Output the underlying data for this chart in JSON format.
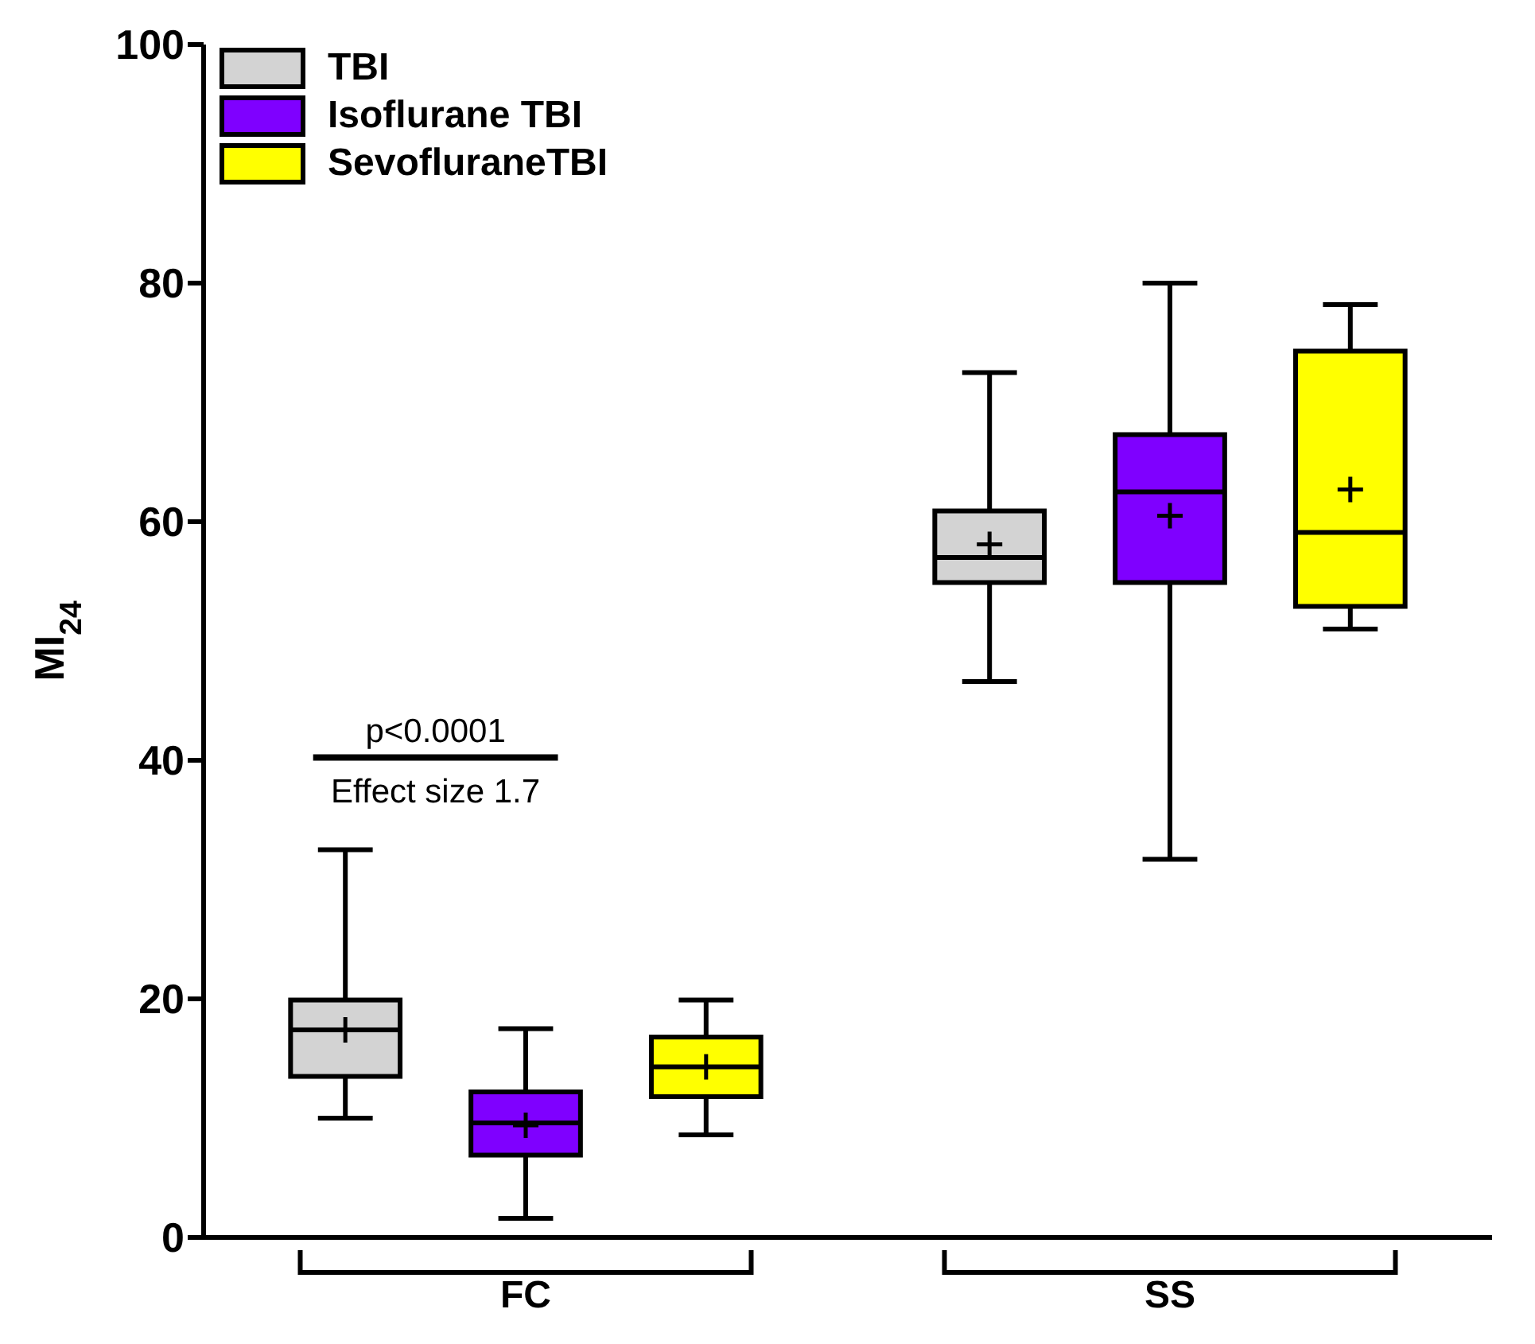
{
  "chart_data": {
    "type": "box",
    "ylabel": "MI$_{24}$",
    "categories": [
      "FC",
      "SS"
    ],
    "series": [
      {
        "name": "TBI",
        "color": "#d3d3d3",
        "boxes": [
          {
            "low": 10.0,
            "q1": 13.5,
            "median": 17.4,
            "q3": 19.9,
            "high": 32.5,
            "mean": 17.4
          },
          {
            "low": 46.6,
            "q1": 54.9,
            "median": 57.0,
            "q3": 60.9,
            "high": 72.5,
            "mean": 58.1
          }
        ]
      },
      {
        "name": "Isoflurane TBI",
        "color": "#7f00ff",
        "boxes": [
          {
            "low": 1.6,
            "q1": 6.9,
            "median": 9.6,
            "q3": 12.2,
            "high": 17.5,
            "mean": 9.4
          },
          {
            "low": 31.7,
            "q1": 54.9,
            "median": 62.5,
            "q3": 67.3,
            "high": 80.0,
            "mean": 60.5
          }
        ]
      },
      {
        "name": "SevofluraneTBI",
        "color": "#ffff00",
        "boxes": [
          {
            "low": 8.6,
            "q1": 11.8,
            "median": 14.3,
            "q3": 16.8,
            "high": 19.9,
            "mean": 14.3
          },
          {
            "low": 51.0,
            "q1": 52.9,
            "median": 59.1,
            "q3": 74.3,
            "high": 78.2,
            "mean": 62.7
          }
        ]
      }
    ],
    "ylim": [
      0,
      100
    ],
    "yticks": [
      0,
      20,
      40,
      60,
      80,
      100
    ],
    "legend": "top left",
    "annotations": [
      "p<0.0001",
      "Effect size 1.7"
    ]
  }
}
